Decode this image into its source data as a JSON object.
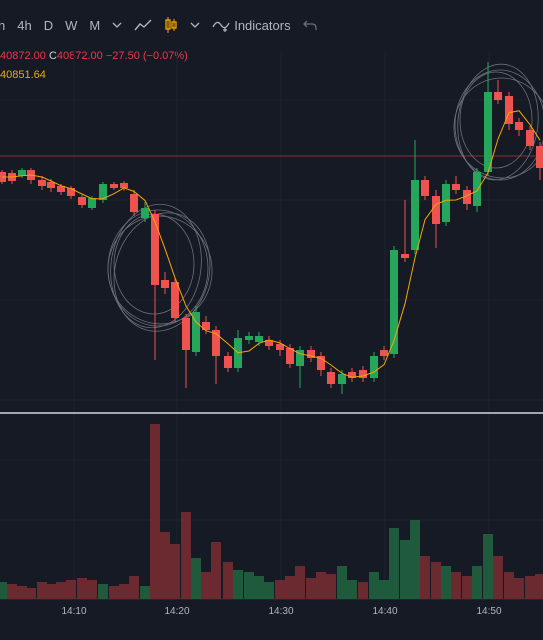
{
  "toolbar": {
    "items": [
      "h",
      "4h",
      "D",
      "W",
      "M"
    ],
    "indicators_label": "Indicators",
    "icons": [
      "chevron-down-icon",
      "line-chart-icon",
      "candles-icon",
      "chevron-down-icon",
      "indicators-icon",
      "undo-icon"
    ]
  },
  "legend": {
    "open_value": "40872.00",
    "close_label": "C",
    "close_value": "40872.00",
    "change": "−27.50 (−0.07%)",
    "ma_value": "40851.64"
  },
  "colors": {
    "background": "#161a25",
    "up": "#26a65b",
    "down": "#ef5350",
    "ma": "#f7a600",
    "up_volume": "#1f5a3c",
    "down_volume": "#6b2a2f"
  },
  "time_axis": {
    "labels": [
      "14:10",
      "14:20",
      "14:30",
      "14:40",
      "14:50"
    ]
  }
}
